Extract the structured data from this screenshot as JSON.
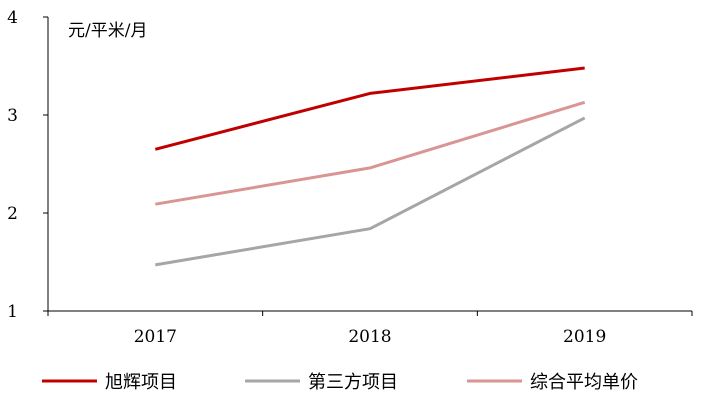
{
  "chart_data": {
    "type": "line",
    "unit_label": "元/平米/月",
    "categories": [
      "2017",
      "2018",
      "2019"
    ],
    "ylim": [
      1,
      4
    ],
    "yticks": [
      "1",
      "2",
      "3",
      "4"
    ],
    "grid": false,
    "legend_position": "bottom",
    "series": [
      {
        "name": "旭辉项目",
        "color": "#c00000",
        "values": [
          2.65,
          3.22,
          3.48
        ]
      },
      {
        "name": "第三方项目",
        "color": "#a6a6a6",
        "values": [
          1.47,
          1.84,
          2.97
        ]
      },
      {
        "name": "综合平均单价",
        "color": "#d99594",
        "values": [
          2.09,
          2.46,
          3.13
        ]
      }
    ]
  }
}
